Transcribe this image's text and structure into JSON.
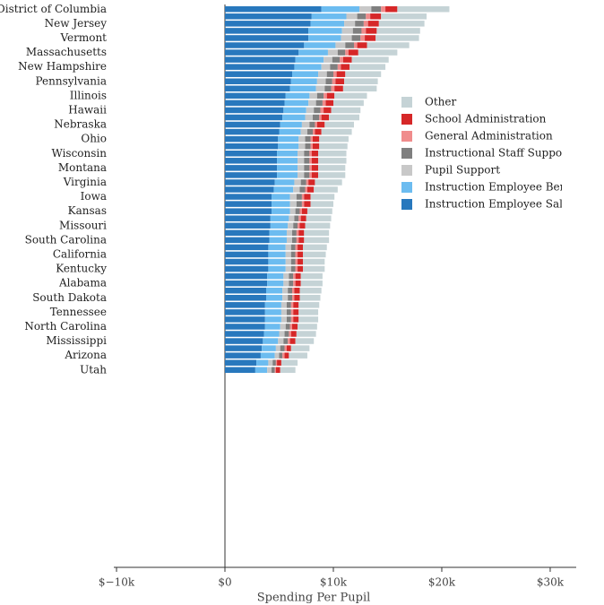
{
  "chart_data": {
    "type": "stacked-bar-horizontal",
    "xlabel": "Spending Per Pupil",
    "categories": [
      "District of Columbia",
      null,
      "New Jersey",
      null,
      "Vermont",
      null,
      "Massachusetts",
      null,
      "New Hampshire",
      null,
      "Pennsylvania",
      null,
      "Illinois",
      null,
      "Hawaii",
      null,
      "Nebraska",
      null,
      "Ohio",
      null,
      "Wisconsin",
      null,
      "Montana",
      null,
      "Virginia",
      null,
      "Iowa",
      null,
      "Kansas",
      null,
      "Missouri",
      null,
      "South Carolina",
      null,
      "California",
      null,
      "Kentucky",
      null,
      "Alabama",
      null,
      "South Dakota",
      null,
      "Tennessee",
      null,
      "North Carolina",
      null,
      "Mississippi",
      null,
      "Arizona",
      null,
      "Utah"
    ],
    "xlim": [
      -10250,
      32400
    ],
    "xticks": [
      {
        "value": -10000,
        "label": "$−10k"
      },
      {
        "value": 0,
        "label": "$0"
      },
      {
        "value": 10000,
        "label": "$10k"
      },
      {
        "value": 20000,
        "label": "$20k"
      },
      {
        "value": 30000,
        "label": "$30k"
      }
    ],
    "legend_position": "right",
    "series": [
      {
        "name": "Instruction Employee Salaries",
        "color": "#2878bd",
        "values": [
          8900,
          8000,
          7900,
          7700,
          7700,
          7300,
          6800,
          6500,
          6400,
          6200,
          6100,
          6000,
          5600,
          5500,
          5400,
          5300,
          5100,
          5000,
          4900,
          4900,
          4800,
          4800,
          4800,
          4800,
          4600,
          4500,
          4300,
          4300,
          4300,
          4200,
          4200,
          4100,
          4100,
          4000,
          4000,
          4000,
          4000,
          3900,
          3900,
          3800,
          3800,
          3700,
          3700,
          3700,
          3700,
          3600,
          3500,
          3400,
          3300,
          2900,
          2800
        ]
      },
      {
        "name": "Instruction Employee Benefits",
        "color": "#6cbcf0",
        "values": [
          3500,
          3200,
          3100,
          3100,
          3000,
          2900,
          2700,
          2600,
          2500,
          2400,
          2400,
          2400,
          2200,
          2200,
          2100,
          2100,
          2000,
          2000,
          1900,
          1900,
          1900,
          1900,
          1900,
          1900,
          1800,
          1800,
          1700,
          1700,
          1700,
          1700,
          1600,
          1600,
          1600,
          1600,
          1600,
          1600,
          1600,
          1500,
          1500,
          1500,
          1500,
          1500,
          1500,
          1500,
          1400,
          1400,
          1400,
          1300,
          1300,
          1100,
          1100
        ]
      },
      {
        "name": "Pupil Support",
        "color": "#c8c8c8",
        "values": [
          1100,
          1000,
          1000,
          1000,
          1000,
          900,
          900,
          800,
          800,
          800,
          800,
          800,
          700,
          700,
          700,
          700,
          700,
          600,
          600,
          600,
          600,
          600,
          600,
          600,
          600,
          600,
          600,
          600,
          500,
          500,
          500,
          500,
          500,
          500,
          500,
          500,
          500,
          500,
          500,
          500,
          500,
          500,
          500,
          500,
          500,
          500,
          500,
          400,
          400,
          400,
          400
        ]
      },
      {
        "name": "Instructional Staff Support",
        "color": "#7f7f7f",
        "values": [
          900,
          800,
          800,
          800,
          800,
          800,
          700,
          700,
          700,
          600,
          600,
          600,
          600,
          600,
          600,
          600,
          500,
          500,
          500,
          500,
          500,
          500,
          500,
          500,
          500,
          500,
          500,
          500,
          400,
          400,
          400,
          400,
          400,
          400,
          400,
          400,
          400,
          400,
          400,
          400,
          400,
          400,
          400,
          400,
          400,
          400,
          400,
          400,
          300,
          300,
          300
        ]
      },
      {
        "name": "General Administration",
        "color": "#f08c8c",
        "values": [
          400,
          400,
          400,
          400,
          400,
          300,
          300,
          300,
          300,
          300,
          300,
          300,
          300,
          300,
          300,
          200,
          200,
          200,
          200,
          200,
          200,
          200,
          200,
          200,
          200,
          200,
          200,
          200,
          200,
          200,
          200,
          200,
          200,
          200,
          200,
          200,
          200,
          200,
          200,
          200,
          200,
          200,
          200,
          200,
          200,
          200,
          200,
          200,
          200,
          100,
          100
        ]
      },
      {
        "name": "School Administration",
        "color": "#d62728",
        "values": [
          1100,
          1000,
          1000,
          1000,
          1000,
          900,
          900,
          800,
          800,
          800,
          800,
          800,
          700,
          700,
          700,
          700,
          700,
          600,
          600,
          600,
          600,
          600,
          600,
          600,
          600,
          600,
          600,
          600,
          500,
          500,
          500,
          500,
          500,
          500,
          500,
          500,
          500,
          500,
          500,
          500,
          500,
          500,
          500,
          500,
          500,
          500,
          500,
          400,
          400,
          400,
          400
        ]
      },
      {
        "name": "Other",
        "color": "#c5d3d6",
        "values": [
          4800,
          4200,
          4200,
          4000,
          4000,
          3900,
          3600,
          3400,
          3300,
          3300,
          3100,
          3100,
          3000,
          2800,
          2700,
          2800,
          2700,
          2800,
          2700,
          2600,
          2600,
          2600,
          2500,
          2500,
          2500,
          2200,
          2200,
          2100,
          2300,
          2300,
          2300,
          2300,
          2300,
          2200,
          2100,
          2000,
          2000,
          2000,
          2000,
          2000,
          1900,
          1900,
          1800,
          1800,
          1800,
          1800,
          1700,
          1700,
          1700,
          1500,
          1400
        ]
      }
    ]
  }
}
